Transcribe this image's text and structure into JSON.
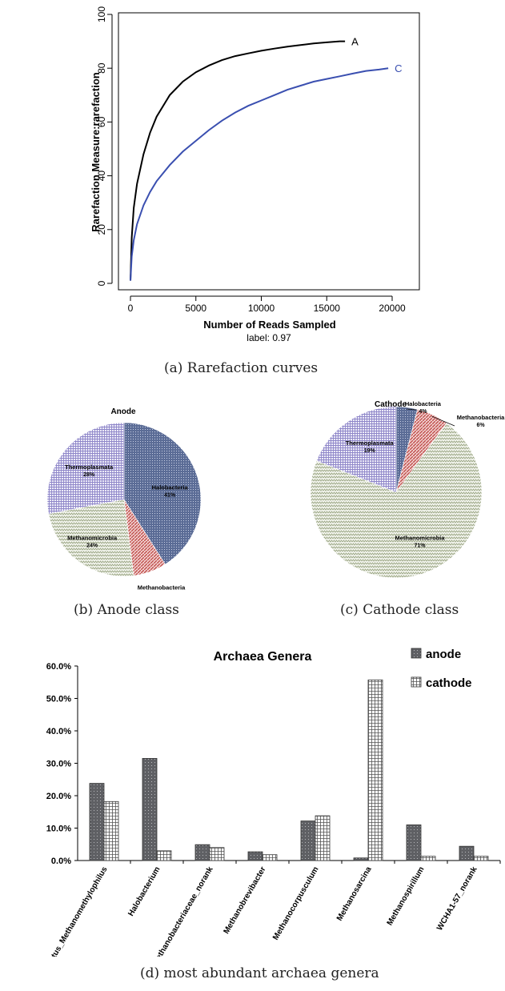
{
  "captions": {
    "a": "(a)  Rarefaction curves",
    "b": "(b)  Anode class",
    "c": "(c)  Cathode class",
    "d": "(d)  most abundant archaea genera"
  },
  "colors": {
    "curve_a": "#000000",
    "curve_c": "#3a4fb0",
    "halobacteria": "#5b6c96",
    "methanobacteria": "#c0504d",
    "methanomicrobia": "#9aa583",
    "thermoplasmata": "#8f87c9",
    "anode_bar": "#5f6064",
    "cathode_bar": "#ffffff"
  },
  "chart_data": [
    {
      "type": "line",
      "ylabel": "Rarefaction Measure:rarefaction",
      "xlabel": "Number of Reads Sampled",
      "subtitle": "label: 0.97",
      "xlim": [
        0,
        20000
      ],
      "ylim": [
        0,
        100
      ],
      "xticks": [
        "0",
        "5000",
        "10000",
        "15000",
        "20000"
      ],
      "yticks": [
        "0",
        "20",
        "40",
        "60",
        "80",
        "100"
      ],
      "series": [
        {
          "name": "A",
          "x": [
            0,
            100,
            250,
            500,
            1000,
            1500,
            2000,
            3000,
            4000,
            5000,
            6000,
            7000,
            8000,
            9000,
            10000,
            11000,
            12000,
            13000,
            14000,
            15000,
            16000,
            16400
          ],
          "y": [
            1,
            17,
            28,
            37,
            48,
            56,
            62,
            70,
            75,
            78.5,
            81,
            83,
            84.5,
            85.5,
            86.5,
            87.3,
            88,
            88.6,
            89.2,
            89.6,
            90,
            90
          ]
        },
        {
          "name": "C",
          "x": [
            0,
            100,
            250,
            500,
            1000,
            1500,
            2000,
            3000,
            4000,
            5000,
            6000,
            7000,
            8000,
            9000,
            10000,
            11000,
            12000,
            13000,
            14000,
            15000,
            16000,
            17000,
            18000,
            19000,
            19700
          ],
          "y": [
            1,
            10,
            16,
            22,
            29,
            34,
            38,
            44,
            49,
            53,
            57,
            60.5,
            63.5,
            66,
            68,
            70,
            72,
            73.5,
            75,
            76,
            77,
            78,
            79,
            79.5,
            80
          ]
        }
      ]
    },
    {
      "type": "pie",
      "title": "Anode",
      "slices": [
        {
          "label": "Halobacteria",
          "pct": "41%",
          "value": 41,
          "color": "#5b6c96"
        },
        {
          "label": "Methanobacteria",
          "pct": "7%",
          "value": 7,
          "color": "#c0504d"
        },
        {
          "label": "Methanomicrobia",
          "pct": "24%",
          "value": 24,
          "color": "#9aa583"
        },
        {
          "label": "Thermoplasmata",
          "pct": "28%",
          "value": 28,
          "color": "#8f87c9"
        }
      ]
    },
    {
      "type": "pie",
      "title": "Cathode",
      "slices": [
        {
          "label": "Halobacteria",
          "pct": "4%",
          "value": 4,
          "color": "#5b6c96"
        },
        {
          "label": "Methanobacteria",
          "pct": "6%",
          "value": 6,
          "color": "#c0504d"
        },
        {
          "label": "Methanomicrobia",
          "pct": "71%",
          "value": 71,
          "color": "#9aa583"
        },
        {
          "label": "Thermoplasmata",
          "pct": "19%",
          "value": 19,
          "color": "#8f87c9"
        }
      ]
    },
    {
      "type": "bar",
      "title": "Archaea Genera",
      "categories": [
        "Candidatus_Methanomethylophilus",
        "Halobacterium",
        "Methanobacteriaceae_norank",
        "Methanobrevibacter",
        "Methanocorpusculum",
        "Methanosarcina",
        "Methanospirillum",
        "WCHA1-57_norank"
      ],
      "series": [
        {
          "name": "anode",
          "values": [
            23.8,
            31.5,
            4.9,
            2.7,
            12.2,
            0.8,
            11.0,
            4.4
          ]
        },
        {
          "name": "cathode",
          "values": [
            18.2,
            3.0,
            4.0,
            1.8,
            13.8,
            55.7,
            1.3,
            1.3
          ]
        }
      ],
      "ylim": [
        0,
        60
      ],
      "yticks": [
        "0.0%",
        "10.0%",
        "20.0%",
        "30.0%",
        "40.0%",
        "50.0%",
        "60.0%"
      ]
    }
  ]
}
